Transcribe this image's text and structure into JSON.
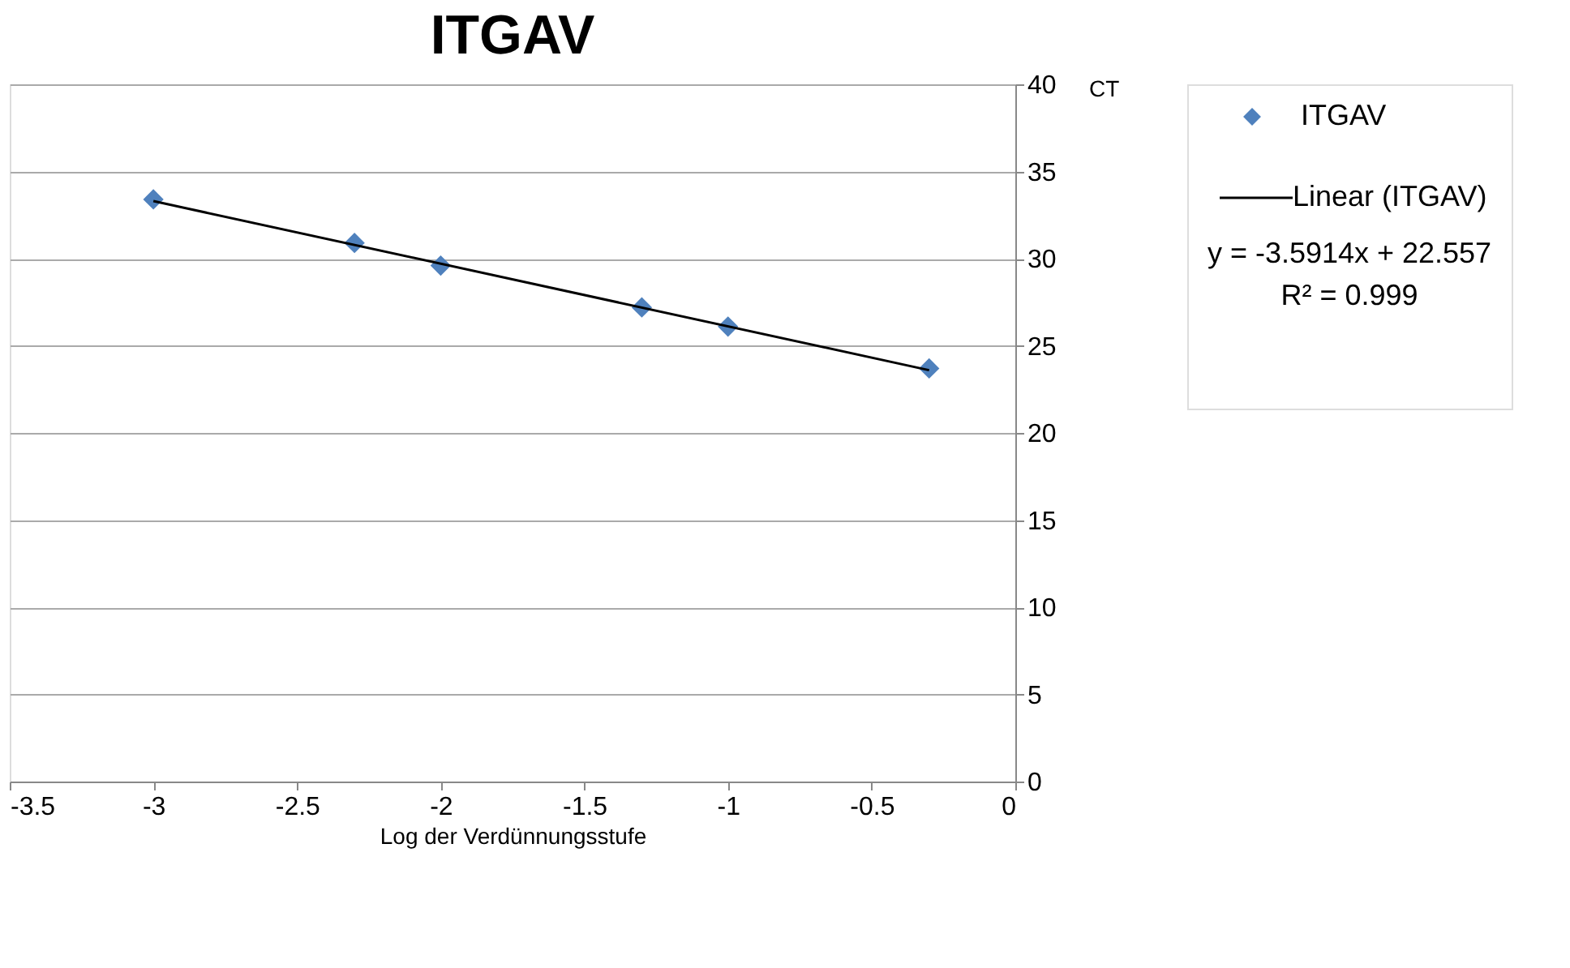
{
  "chart_data": {
    "type": "scatter",
    "title": "ITGAV",
    "xlabel": "Log der Verdünnungsstufe",
    "ylabel": "CT",
    "x": [
      -3,
      -2.3,
      -2,
      -1.3,
      -1,
      -0.3
    ],
    "series": [
      {
        "name": "ITGAV",
        "color": "#4f81bd",
        "marker": "diamond",
        "values": [
          33.4,
          30.9,
          29.6,
          27.2,
          26.1,
          23.7
        ]
      },
      {
        "name": "Linear (ITGAV)",
        "type": "line",
        "color": "#000000",
        "x": [
          -3,
          -0.3
        ],
        "values": [
          33.3,
          23.6
        ]
      }
    ],
    "xlim": [
      -3.5,
      0
    ],
    "xticks": [
      -3.5,
      -3,
      -2.5,
      -2,
      -1.5,
      -1,
      -0.5,
      0
    ],
    "ylim": [
      0,
      40
    ],
    "yticks": [
      0,
      5,
      10,
      15,
      20,
      25,
      30,
      35,
      40
    ],
    "grid": "y",
    "legend": "right",
    "annotations": [
      "y = -3.5914x + 22.557",
      "R² = 0.999"
    ]
  }
}
